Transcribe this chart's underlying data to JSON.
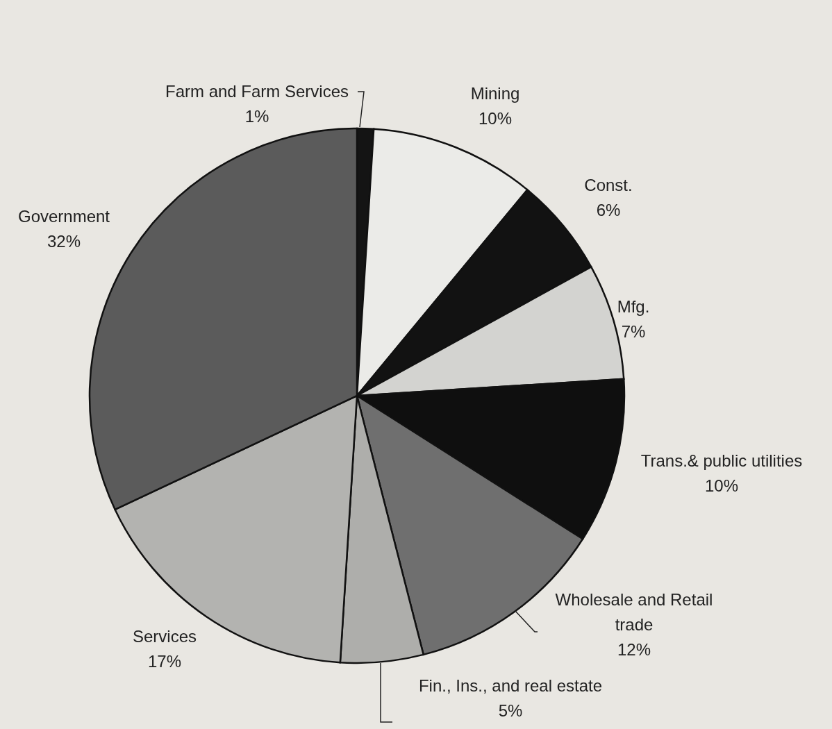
{
  "chart_data": {
    "type": "pie",
    "categories": [
      "Farm and Farm Services",
      "Mining",
      "Const.",
      "Mfg.",
      "Trans.& public utilities",
      "Wholesale and Retail trade",
      "Fin., Ins., and real estate",
      "Services",
      "Government"
    ],
    "values": [
      1,
      10,
      6,
      7,
      10,
      12,
      5,
      17,
      32
    ],
    "value_labels": [
      "1%",
      "10%",
      "6%",
      "7%",
      "10%",
      "12%",
      "5%",
      "17%",
      "32%"
    ],
    "colors": [
      "#141414",
      "#ebebe8",
      "#121212",
      "#d3d3d0",
      "#0f0f0f",
      "#6f6f6f",
      "#aeaeab",
      "#b3b3b0",
      "#5b5b5b"
    ]
  }
}
